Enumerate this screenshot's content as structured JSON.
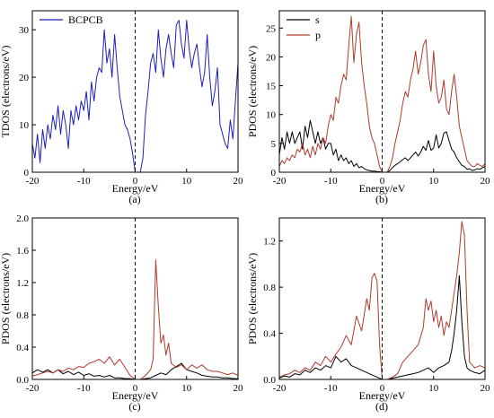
{
  "chart_data": [
    {
      "type": "line",
      "panel_label": "(a)",
      "xlabel": "Energy/eV",
      "ylabel": "TDOS (electrons/eV)",
      "xlim": [
        -20,
        20
      ],
      "ylim": [
        0,
        34
      ],
      "xticks": [
        -20,
        -10,
        0,
        10,
        20
      ],
      "yticks": [
        0,
        10,
        20,
        30
      ],
      "fermi_line_x": 0,
      "legend": "top-left",
      "series": [
        {
          "name": "BCPCB",
          "color": "#1f1fbf",
          "x": [
            -20,
            -19.5,
            -19,
            -18.5,
            -18,
            -17.5,
            -17,
            -16.5,
            -16,
            -15.5,
            -15,
            -14.5,
            -14,
            -13.5,
            -13,
            -12.5,
            -12,
            -11.5,
            -11,
            -10.5,
            -10,
            -9.5,
            -9,
            -8.5,
            -8,
            -7.5,
            -7,
            -6.5,
            -6,
            -5.5,
            -5,
            -4.5,
            -4,
            -3.5,
            -3,
            -2.5,
            -2,
            -1.5,
            -1,
            -0.5,
            0,
            1,
            1.5,
            2,
            2.5,
            3,
            3.5,
            4,
            4.5,
            5,
            5.5,
            6,
            6.5,
            7,
            7.5,
            8,
            8.5,
            9,
            9.5,
            10,
            10.5,
            11,
            11.5,
            12,
            12.5,
            13,
            13.5,
            14,
            14.5,
            15,
            15.5,
            16,
            16.5,
            17,
            17.5,
            18,
            18.5,
            19,
            19.5,
            20
          ],
          "y": [
            6,
            3,
            8,
            2,
            9,
            5,
            10,
            7,
            12,
            9,
            14,
            8,
            13,
            10,
            5,
            13,
            10,
            14,
            11,
            15,
            13,
            17,
            11,
            19,
            15,
            20,
            22,
            21,
            30,
            23,
            26,
            20,
            29,
            22,
            16,
            13,
            10,
            9,
            7,
            4,
            0,
            0,
            3,
            12,
            17,
            23,
            25,
            21,
            30,
            24,
            20,
            26,
            29,
            25,
            22,
            31,
            32,
            27,
            24,
            32,
            26,
            22,
            25,
            27,
            22,
            18,
            21,
            29,
            20,
            14,
            17,
            22,
            10,
            8,
            6,
            5,
            11,
            7,
            15,
            23
          ]
        }
      ]
    },
    {
      "type": "line",
      "panel_label": "(b)",
      "xlabel": "Energy/eV",
      "ylabel": "PDOS (electrons/eV)",
      "xlim": [
        -20,
        20
      ],
      "ylim": [
        0,
        28
      ],
      "xticks": [
        -20,
        -10,
        0,
        10,
        20
      ],
      "yticks": [
        0,
        5,
        10,
        15,
        20,
        25
      ],
      "fermi_line_x": 0,
      "legend": "top-left",
      "series": [
        {
          "name": "s",
          "color": "#000000",
          "x": [
            -20,
            -19.5,
            -19,
            -18.5,
            -18,
            -17.5,
            -17,
            -16.5,
            -16,
            -15.5,
            -15,
            -14.5,
            -14,
            -13.5,
            -13,
            -12.5,
            -12,
            -11.5,
            -11,
            -10.5,
            -10,
            -9.5,
            -9,
            -8.5,
            -8,
            -7.5,
            -7,
            -6.5,
            -6,
            -5.5,
            -5,
            -4.5,
            -4,
            -3.5,
            -3,
            -2.5,
            -2,
            -1.5,
            -1,
            -0.5,
            0,
            1,
            1.5,
            2,
            2.5,
            3,
            3.5,
            4,
            4.5,
            5,
            5.5,
            6,
            6.5,
            7,
            7.5,
            8,
            8.5,
            9,
            9.5,
            10,
            10.5,
            11,
            11.5,
            12,
            12.5,
            13,
            13.5,
            14,
            14.5,
            15,
            15.5,
            16,
            16.5,
            17,
            17.5,
            18,
            18.5,
            19,
            19.5,
            20
          ],
          "y": [
            3,
            6,
            4,
            7,
            5,
            7,
            5,
            6,
            7,
            4,
            8,
            6,
            9,
            7,
            5,
            7,
            5,
            6,
            4,
            5,
            5,
            3,
            4,
            2,
            3,
            2,
            2.5,
            1.5,
            2,
            1,
            1.5,
            0.8,
            1,
            0.6,
            0.4,
            0.3,
            0.2,
            0.2,
            0.1,
            0.1,
            0,
            0,
            0.3,
            0.8,
            1.2,
            1.5,
            1.8,
            2.2,
            2.5,
            2,
            2.5,
            3,
            3.5,
            2.8,
            3.5,
            4.5,
            3.8,
            5.5,
            3.8,
            4.2,
            6.5,
            4.2,
            5,
            6.8,
            7,
            5.5,
            4,
            3.5,
            2.5,
            1.8,
            1.2,
            1,
            0.5,
            0.6,
            0.3,
            0.4,
            0.6,
            0.5,
            0.8,
            1
          ]
        },
        {
          "name": "p",
          "color": "#b03a2e",
          "x": [
            -20,
            -19.5,
            -19,
            -18.5,
            -18,
            -17.5,
            -17,
            -16.5,
            -16,
            -15.5,
            -15,
            -14.5,
            -14,
            -13.5,
            -13,
            -12.5,
            -12,
            -11.5,
            -11,
            -10.5,
            -10,
            -9.5,
            -9,
            -8.5,
            -8,
            -7.5,
            -7,
            -6.5,
            -6,
            -5.5,
            -5,
            -4.5,
            -4,
            -3.5,
            -3,
            -2.5,
            -2,
            -1.5,
            -1,
            -0.5,
            0,
            1,
            1.5,
            2,
            2.5,
            3,
            3.5,
            4,
            4.5,
            5,
            5.5,
            6,
            6.5,
            7,
            7.5,
            8,
            8.5,
            9,
            9.5,
            10,
            10.5,
            11,
            11.5,
            12,
            12.5,
            13,
            13.5,
            14,
            14.5,
            15,
            15.5,
            16,
            16.5,
            17,
            17.5,
            18,
            18.5,
            19,
            19.5,
            20
          ],
          "y": [
            1,
            2,
            1.5,
            2.5,
            2,
            3,
            2.5,
            4,
            3.5,
            5,
            3,
            4,
            2.5,
            4.5,
            3,
            5,
            4,
            6,
            5,
            8,
            10,
            9,
            13,
            12,
            15,
            17,
            16,
            22,
            27,
            19,
            24,
            26,
            19,
            15,
            12,
            8,
            6,
            5,
            3,
            1,
            0,
            0,
            1,
            2.5,
            5,
            7,
            9,
            12,
            14,
            13,
            16,
            18,
            21,
            17,
            19,
            22,
            23,
            17,
            14,
            21,
            15,
            12,
            13,
            16,
            11,
            10,
            14,
            17,
            13,
            8,
            6,
            4,
            2,
            1.5,
            1,
            1,
            1.5,
            1.2,
            1,
            1.5
          ]
        }
      ]
    },
    {
      "type": "line",
      "panel_label": "(c)",
      "xlabel": "Energy/eV",
      "ylabel": "PDOS (electrons/eV)",
      "xlim": [
        -20,
        20
      ],
      "ylim": [
        0,
        2.0
      ],
      "xticks": [
        -20,
        -10,
        0,
        10,
        20
      ],
      "yticks": [
        0.0,
        0.4,
        0.8,
        1.2,
        1.6,
        2.0
      ],
      "fermi_line_x": 0,
      "series": [
        {
          "color": "#000000",
          "x": [
            -20,
            -19,
            -18,
            -17,
            -16,
            -15,
            -14,
            -13,
            -12,
            -11,
            -10,
            -9,
            -8,
            -7,
            -6,
            -5,
            -4,
            -3,
            -2,
            -1,
            0,
            1,
            2,
            3,
            4,
            5,
            6,
            7,
            8,
            9,
            10,
            11,
            12,
            13,
            14,
            15,
            16,
            17,
            18,
            19,
            20
          ],
          "y": [
            0.08,
            0.12,
            0.09,
            0.12,
            0.08,
            0.12,
            0.07,
            0.1,
            0.06,
            0.09,
            0.05,
            0.07,
            0.04,
            0.05,
            0.03,
            0.05,
            0.02,
            0.02,
            0.01,
            0.01,
            0,
            0,
            0.01,
            0.02,
            0.05,
            0.08,
            0.06,
            0.12,
            0.16,
            0.2,
            0.12,
            0.1,
            0.08,
            0.05,
            0.04,
            0.03,
            0.03,
            0.02,
            0.02,
            0.01,
            0.01
          ]
        },
        {
          "color": "#b03a2e",
          "x": [
            -20,
            -19,
            -18,
            -17,
            -16,
            -15,
            -14,
            -13,
            -12,
            -11,
            -10,
            -9,
            -8,
            -7,
            -6,
            -5,
            -4,
            -3,
            -2,
            -1,
            0,
            1,
            2,
            3,
            3.5,
            4,
            4.5,
            5,
            5.5,
            6,
            6.5,
            7,
            8,
            9,
            10,
            11,
            12,
            13,
            14,
            15,
            16,
            17,
            18,
            19,
            20
          ],
          "y": [
            0.04,
            0.06,
            0.08,
            0.1,
            0.08,
            0.12,
            0.1,
            0.14,
            0.12,
            0.16,
            0.15,
            0.2,
            0.22,
            0.25,
            0.2,
            0.28,
            0.18,
            0.25,
            0.15,
            0.05,
            0,
            0,
            0.05,
            0.12,
            0.25,
            1.48,
            0.9,
            0.45,
            0.55,
            0.3,
            0.45,
            0.2,
            0.15,
            0.18,
            0.12,
            0.18,
            0.14,
            0.18,
            0.12,
            0.1,
            0.1,
            0.08,
            0.06,
            0.08,
            0.05
          ]
        }
      ]
    },
    {
      "type": "line",
      "panel_label": "(d)",
      "xlabel": "Energy/eV",
      "ylabel": "PDOS (electrons/eV)",
      "xlim": [
        -20,
        20
      ],
      "ylim": [
        0,
        1.4
      ],
      "xticks": [
        -20,
        -10,
        0,
        10,
        20
      ],
      "yticks": [
        0.0,
        0.4,
        0.8,
        1.2
      ],
      "fermi_line_x": 0,
      "series": [
        {
          "color": "#000000",
          "x": [
            -20,
            -19,
            -18,
            -17,
            -16,
            -15,
            -14,
            -13,
            -12,
            -11,
            -10,
            -9,
            -8,
            -7,
            -6,
            -5,
            -4,
            -3,
            -2,
            -1,
            0,
            1,
            2,
            3,
            4,
            5,
            6,
            7,
            8,
            9,
            10,
            11,
            12,
            13,
            13.5,
            14,
            14.5,
            15,
            15.5,
            16,
            16.5,
            17,
            18,
            19,
            20
          ],
          "y": [
            0.01,
            0.03,
            0.02,
            0.05,
            0.04,
            0.08,
            0.06,
            0.1,
            0.08,
            0.12,
            0.1,
            0.2,
            0.15,
            0.18,
            0.12,
            0.1,
            0.08,
            0.06,
            0.04,
            0.02,
            0,
            0,
            0.01,
            0.02,
            0.03,
            0.04,
            0.05,
            0.06,
            0.08,
            0.1,
            0.06,
            0.1,
            0.12,
            0.15,
            0.25,
            0.4,
            0.6,
            0.9,
            0.5,
            0.2,
            0.1,
            0.08,
            0.06,
            0.05,
            0.08
          ]
        },
        {
          "color": "#b03a2e",
          "x": [
            -20,
            -19,
            -18,
            -17,
            -16,
            -15,
            -14,
            -13,
            -12,
            -11,
            -10,
            -9,
            -8,
            -7,
            -6,
            -5,
            -4,
            -3,
            -2.5,
            -2,
            -1.5,
            -1,
            -0.5,
            0,
            1,
            2,
            3,
            4,
            5,
            6,
            7,
            8,
            8.5,
            9,
            9.5,
            10,
            10.5,
            11,
            11.5,
            12,
            12.5,
            13,
            13.5,
            14,
            14.5,
            15,
            15.5,
            16,
            16.5,
            17,
            18,
            19,
            20
          ],
          "y": [
            0.02,
            0.04,
            0.05,
            0.08,
            0.06,
            0.1,
            0.08,
            0.15,
            0.12,
            0.2,
            0.15,
            0.22,
            0.28,
            0.38,
            0.3,
            0.55,
            0.42,
            0.7,
            0.6,
            0.88,
            0.92,
            0.85,
            0.3,
            0,
            0,
            0.02,
            0.05,
            0.15,
            0.2,
            0.25,
            0.3,
            0.45,
            0.7,
            0.6,
            0.68,
            0.5,
            0.6,
            0.45,
            0.55,
            0.38,
            0.5,
            0.45,
            0.6,
            0.75,
            0.9,
            1.1,
            1.37,
            1.25,
            0.6,
            0.15,
            0.1,
            0.12,
            0.1
          ]
        }
      ]
    }
  ]
}
